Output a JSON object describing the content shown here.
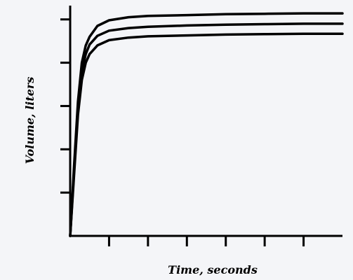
{
  "chart_data": {
    "type": "line",
    "xlabel": "Time, seconds",
    "ylabel": "Volume, liters",
    "xlim": [
      0,
      7
    ],
    "ylim": [
      0,
      5.4
    ],
    "x_ticks": [
      1,
      2,
      3,
      4,
      5,
      6
    ],
    "y_ticks": [
      1,
      2,
      3,
      4,
      5
    ],
    "grid": false,
    "legend": "none",
    "series": [
      {
        "x": [
          0,
          0.1,
          0.2,
          0.3,
          0.4,
          0.5,
          0.7,
          1.0,
          1.5,
          2.0,
          3.0,
          4.0,
          5.0,
          6.0,
          7.0
        ],
        "values": [
          0,
          1.6,
          3.1,
          4.0,
          4.4,
          4.6,
          4.85,
          4.98,
          5.05,
          5.08,
          5.1,
          5.12,
          5.13,
          5.14,
          5.14
        ]
      },
      {
        "x": [
          0,
          0.1,
          0.2,
          0.3,
          0.4,
          0.5,
          0.7,
          1.0,
          1.5,
          2.0,
          3.0,
          4.0,
          5.0,
          6.0,
          7.0
        ],
        "values": [
          0,
          1.5,
          3.0,
          3.8,
          4.2,
          4.42,
          4.62,
          4.74,
          4.8,
          4.83,
          4.86,
          4.88,
          4.89,
          4.9,
          4.9
        ]
      },
      {
        "x": [
          0,
          0.1,
          0.2,
          0.3,
          0.4,
          0.5,
          0.7,
          1.0,
          1.5,
          2.0,
          3.0,
          4.0,
          5.0,
          6.0,
          7.0
        ],
        "values": [
          0,
          1.4,
          2.8,
          3.6,
          4.0,
          4.2,
          4.4,
          4.52,
          4.58,
          4.61,
          4.63,
          4.65,
          4.66,
          4.67,
          4.67
        ]
      }
    ]
  }
}
